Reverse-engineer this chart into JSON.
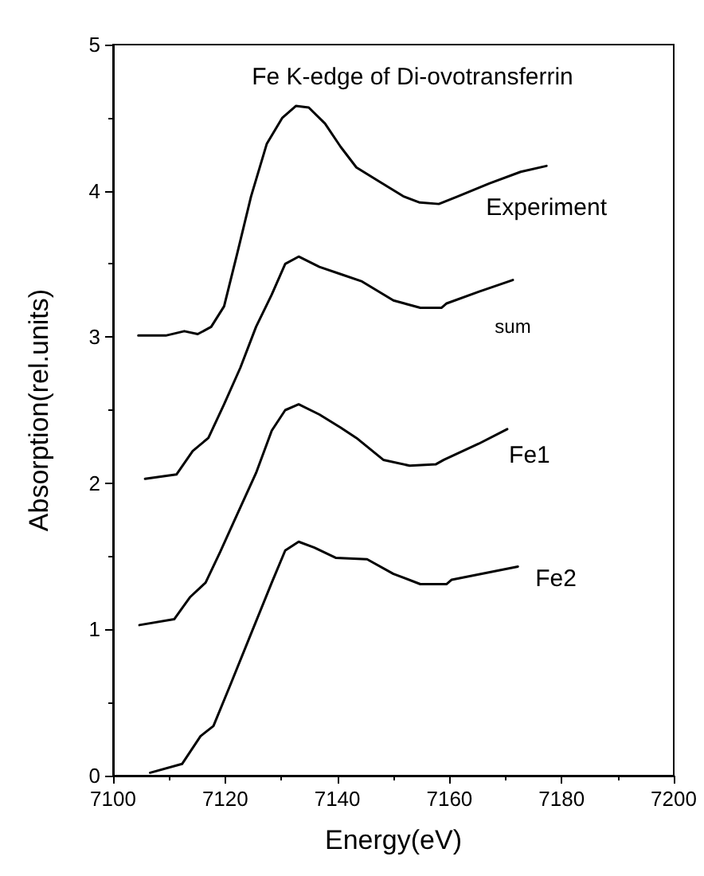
{
  "chart_data": {
    "type": "line",
    "title": "Fe K-edge of Di-ovotransferrin",
    "xlabel": "Energy(eV)",
    "ylabel": "Absorption(rel.units)",
    "xlim": [
      7100,
      7200
    ],
    "xticks": [
      7100,
      7120,
      7140,
      7160,
      7180,
      7200
    ],
    "ylim": [
      0,
      5
    ],
    "yticks": [
      0,
      1,
      2,
      3,
      4,
      5
    ],
    "grid": false,
    "legend": false,
    "marker": "none",
    "line_style": "solid",
    "series": [
      {
        "name": "Experiment",
        "color": "#000000",
        "x": [
          7104.5,
          7109.4,
          7112.7,
          7115.1,
          7117.5,
          7119.8,
          7122.2,
          7124.6,
          7127.4,
          7130.2,
          7132.6,
          7134.9,
          7137.8,
          7140.6,
          7143.4,
          7147.2,
          7151.9,
          7154.7,
          7158.1,
          7161.4,
          7167.1,
          7172.7,
          7177.3
        ],
        "values": [
          3.01,
          3.01,
          3.04,
          3.02,
          3.07,
          3.21,
          3.58,
          3.96,
          4.32,
          4.5,
          4.58,
          4.57,
          4.46,
          4.3,
          4.16,
          4.07,
          3.96,
          3.92,
          3.91,
          3.96,
          4.05,
          4.13,
          4.17
        ]
      },
      {
        "name": "sum",
        "color": "#000000",
        "x": [
          7105.7,
          7111.3,
          7114.2,
          7117.0,
          7119.8,
          7122.7,
          7125.5,
          7128.3,
          7130.7,
          7133.1,
          7136.8,
          7140.6,
          7144.4,
          7150.0,
          7154.8,
          7158.6,
          7159.5,
          7165.2,
          7171.3
        ],
        "values": [
          2.03,
          2.06,
          2.22,
          2.31,
          2.54,
          2.79,
          3.07,
          3.29,
          3.5,
          3.55,
          3.48,
          3.43,
          3.38,
          3.25,
          3.2,
          3.2,
          3.23,
          3.31,
          3.39
        ]
      },
      {
        "name": "Fe1",
        "color": "#000000",
        "x": [
          7104.7,
          7110.9,
          7113.7,
          7116.5,
          7119.1,
          7121.7,
          7125.5,
          7128.3,
          7130.7,
          7133.1,
          7136.8,
          7140.6,
          7143.4,
          7148.2,
          7152.9,
          7157.6,
          7159.0,
          7165.2,
          7170.3
        ],
        "values": [
          1.03,
          1.07,
          1.22,
          1.32,
          1.53,
          1.75,
          2.07,
          2.36,
          2.5,
          2.54,
          2.47,
          2.38,
          2.31,
          2.16,
          2.12,
          2.13,
          2.16,
          2.27,
          2.37
        ]
      },
      {
        "name": "Fe2",
        "color": "#000000",
        "x": [
          7106.6,
          7112.3,
          7115.6,
          7117.9,
          7120.8,
          7124.6,
          7128.3,
          7130.7,
          7133.1,
          7135.9,
          7139.7,
          7145.3,
          7150.0,
          7154.8,
          7159.5,
          7160.4,
          7172.2
        ],
        "values": [
          0.02,
          0.08,
          0.27,
          0.34,
          0.61,
          0.97,
          1.32,
          1.54,
          1.6,
          1.56,
          1.49,
          1.48,
          1.38,
          1.31,
          1.31,
          1.34,
          1.43
        ]
      }
    ]
  }
}
